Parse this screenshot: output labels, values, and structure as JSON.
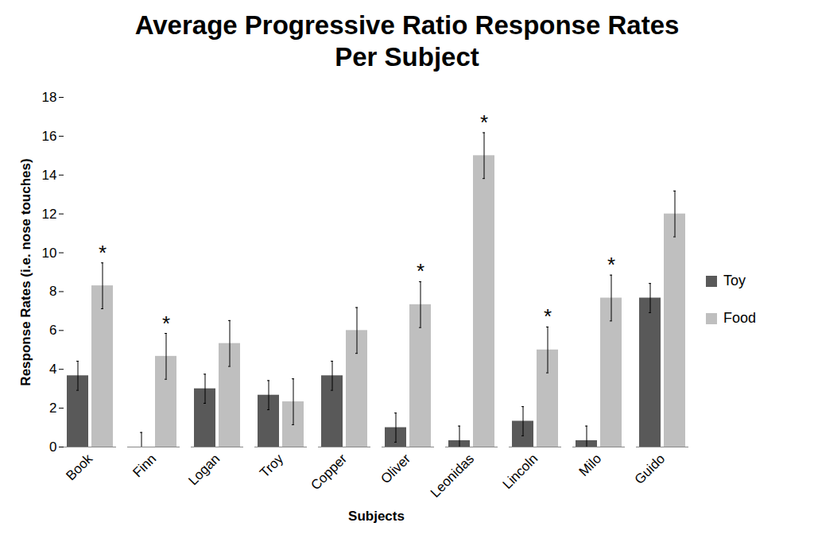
{
  "chart_data": {
    "type": "bar",
    "title": "Average Progressive Ratio Response Rates\nPer Subject",
    "x_label": "Subjects",
    "y_label": "Response Rates (i.e. nose touches)",
    "categories": [
      "Book",
      "Finn",
      "Logan",
      "Troy",
      "Copper",
      "Oliver",
      "Leonidas",
      "Lincoln",
      "Milo",
      "Guido"
    ],
    "series": [
      {
        "name": "Toy",
        "color": "#595959",
        "values": [
          3.67,
          0,
          3.0,
          2.67,
          3.67,
          1.0,
          0.33,
          1.33,
          0.33,
          7.67
        ],
        "errors": [
          0.75,
          0.75,
          0.75,
          0.75,
          0.75,
          0.75,
          0.75,
          0.75,
          0.75,
          0.75
        ]
      },
      {
        "name": "Food",
        "color": "#bfbfbf",
        "values": [
          8.3,
          4.67,
          5.33,
          2.33,
          6.0,
          7.33,
          15.0,
          5.0,
          7.67,
          12.0
        ],
        "errors": [
          1.18,
          1.18,
          1.18,
          1.18,
          1.18,
          1.18,
          1.18,
          1.18,
          1.18,
          1.18
        ],
        "annotations": [
          "*",
          "*",
          null,
          null,
          null,
          "*",
          "*",
          "*",
          "*",
          null
        ]
      }
    ],
    "ylim": [
      0,
      18
    ],
    "yticks": [
      0,
      2,
      4,
      6,
      8,
      10,
      12,
      14,
      16,
      18
    ],
    "grid": false,
    "legend": "right"
  }
}
